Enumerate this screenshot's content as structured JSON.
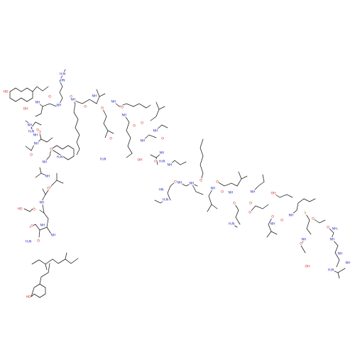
{
  "colors": {
    "bond": "#1a1a1a",
    "N": "#2c2cc8",
    "O": "#d42020",
    "S": "#b08a00",
    "background": "#ffffff"
  },
  "labels": [
    {
      "text": "HO",
      "el": "O"
    },
    {
      "text": "NH",
      "el": "N"
    },
    {
      "text": "O",
      "el": "O"
    },
    {
      "text": "OH",
      "el": "O"
    },
    {
      "text": "NH",
      "el": "N"
    },
    {
      "text": "H₂N",
      "el": "N"
    },
    {
      "text": "O",
      "el": "O"
    },
    {
      "text": "NH",
      "el": "N"
    },
    {
      "text": "O",
      "el": "O"
    },
    {
      "text": "OH",
      "el": "O"
    },
    {
      "text": "NH",
      "el": "N"
    },
    {
      "text": "O",
      "el": "O"
    },
    {
      "text": "NH",
      "el": "N"
    },
    {
      "text": "O",
      "el": "O"
    },
    {
      "text": "NH",
      "el": "N"
    },
    {
      "text": "O",
      "el": "O"
    },
    {
      "text": "NH",
      "el": "N"
    },
    {
      "text": "O",
      "el": "O"
    },
    {
      "text": "HO",
      "el": "O"
    },
    {
      "text": "O",
      "el": "O"
    },
    {
      "text": "NH",
      "el": "N"
    },
    {
      "text": "O",
      "el": "O"
    },
    {
      "text": "NH",
      "el": "N"
    },
    {
      "text": "O",
      "el": "O"
    },
    {
      "text": "H₂N",
      "el": "N"
    },
    {
      "text": "O",
      "el": "O"
    },
    {
      "text": "HO",
      "el": "O"
    },
    {
      "text": "NH",
      "el": "N"
    },
    {
      "text": "HN",
      "el": "N"
    },
    {
      "text": "H₂N",
      "el": "N"
    },
    {
      "text": "NH",
      "el": "N"
    },
    {
      "text": "O",
      "el": "O"
    },
    {
      "text": "NH",
      "el": "N"
    },
    {
      "text": "O",
      "el": "O"
    },
    {
      "text": "H₂N",
      "el": "N"
    },
    {
      "text": "NH",
      "el": "N"
    },
    {
      "text": "O",
      "el": "O"
    },
    {
      "text": "NH",
      "el": "N"
    },
    {
      "text": "O",
      "el": "O"
    },
    {
      "text": "NH",
      "el": "N"
    },
    {
      "text": "O",
      "el": "O"
    },
    {
      "text": "H₂N",
      "el": "N"
    },
    {
      "text": "O",
      "el": "O"
    },
    {
      "text": "NH",
      "el": "N"
    },
    {
      "text": "O",
      "el": "O"
    },
    {
      "text": "NH",
      "el": "N"
    },
    {
      "text": "OH",
      "el": "O"
    },
    {
      "text": "O",
      "el": "O"
    },
    {
      "text": "NH",
      "el": "N"
    },
    {
      "text": "O",
      "el": "O"
    },
    {
      "text": "NH",
      "el": "N"
    },
    {
      "text": "O",
      "el": "O"
    },
    {
      "text": "H₂N",
      "el": "N"
    },
    {
      "text": "HN",
      "el": "N"
    },
    {
      "text": "H₂N",
      "el": "N"
    },
    {
      "text": "NH",
      "el": "N"
    },
    {
      "text": "O",
      "el": "O"
    },
    {
      "text": "NH",
      "el": "N"
    },
    {
      "text": "O",
      "el": "O"
    },
    {
      "text": "NH",
      "el": "N"
    },
    {
      "text": "O",
      "el": "O"
    },
    {
      "text": "H₂N",
      "el": "N"
    },
    {
      "text": "O",
      "el": "O"
    },
    {
      "text": "NH",
      "el": "N"
    },
    {
      "text": "O",
      "el": "O"
    },
    {
      "text": "OH",
      "el": "O"
    },
    {
      "text": "O",
      "el": "O"
    },
    {
      "text": "NH",
      "el": "N"
    },
    {
      "text": "O",
      "el": "O"
    },
    {
      "text": "NH",
      "el": "N"
    },
    {
      "text": "S",
      "el": "S"
    },
    {
      "text": "O",
      "el": "O"
    },
    {
      "text": "NH",
      "el": "N"
    },
    {
      "text": "O",
      "el": "O"
    },
    {
      "text": "OH",
      "el": "O"
    },
    {
      "text": "O",
      "el": "O"
    },
    {
      "text": "NH₂",
      "el": "N"
    },
    {
      "text": "NH",
      "el": "N"
    },
    {
      "text": "NH",
      "el": "N"
    },
    {
      "text": "H₂N",
      "el": "N"
    },
    {
      "text": "NH",
      "el": "N"
    }
  ]
}
